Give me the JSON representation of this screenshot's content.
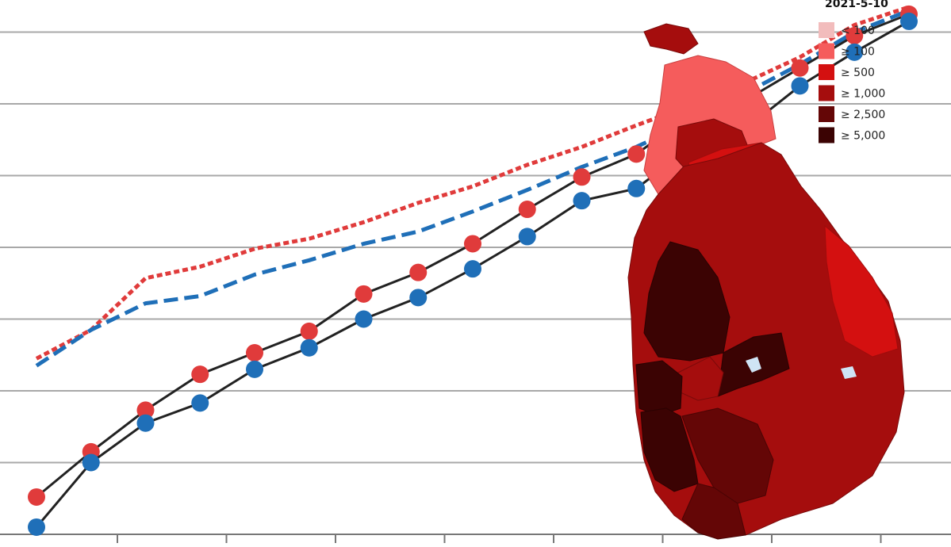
{
  "chart_data": {
    "type": "line",
    "title": "",
    "xlabel": "",
    "ylabel": "",
    "grid": true,
    "x": [
      0,
      1,
      2,
      3,
      4,
      5,
      6,
      7,
      8,
      9,
      10,
      11,
      12,
      13,
      14,
      15,
      16
    ],
    "series": [
      {
        "color": "#e03b3b",
        "style": "solid-with-markers",
        "values": [
          0.52,
          1.15,
          1.73,
          2.23,
          2.53,
          2.83,
          3.35,
          3.65,
          4.05,
          4.53,
          4.98,
          5.3,
          5.85,
          6.05,
          6.5,
          6.95,
          7.25
        ]
      },
      {
        "color": "#1f6fb8",
        "style": "solid-with-markers",
        "values": [
          0.1,
          1.0,
          1.55,
          1.83,
          2.3,
          2.6,
          3.0,
          3.3,
          3.7,
          4.15,
          4.65,
          4.82,
          5.4,
          5.65,
          6.25,
          6.72,
          7.15
        ]
      },
      {
        "color": "#e03b3b",
        "style": "dotted-trend",
        "values": [
          2.45,
          2.85,
          3.57,
          3.73,
          3.98,
          4.12,
          4.35,
          4.62,
          4.85,
          5.15,
          5.4,
          5.7,
          5.98,
          6.3,
          6.65,
          7.1,
          7.35
        ]
      },
      {
        "color": "#1f6fb8",
        "style": "dashed-trend",
        "values": [
          2.35,
          2.85,
          3.22,
          3.32,
          3.62,
          3.82,
          4.05,
          4.22,
          4.5,
          4.8,
          5.12,
          5.4,
          5.75,
          6.15,
          6.55,
          7.0,
          7.3
        ]
      }
    ],
    "ylim": [
      0,
      7.35
    ]
  },
  "map": {
    "date_label": "2021-5-10",
    "legend": [
      {
        "label": "< 100",
        "color": "#f2bcbc"
      },
      {
        "label": "≥ 100",
        "color": "#f55c5c"
      },
      {
        "label": "≥ 500",
        "color": "#d41010"
      },
      {
        "label": "≥ 1,000",
        "color": "#a50d0d"
      },
      {
        "label": "≥ 2,500",
        "color": "#640606"
      },
      {
        "label": "≥ 5,000",
        "color": "#3b0303"
      }
    ]
  }
}
